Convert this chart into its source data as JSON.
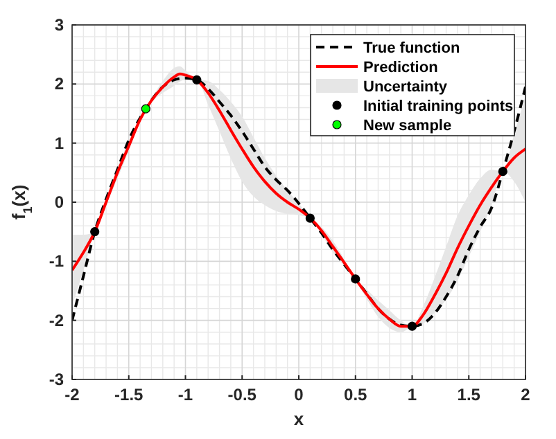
{
  "chart_data": {
    "type": "line",
    "xlabel": "x",
    "ylabel": "f$_{1}$(x)",
    "xlim": [
      -2,
      2
    ],
    "ylim": [
      -3,
      3
    ],
    "xticks": [
      -2,
      -1.5,
      -1,
      -0.5,
      0,
      0.5,
      1,
      1.5,
      2
    ],
    "yticks": [
      -3,
      -2,
      -1,
      0,
      1,
      2,
      3
    ],
    "grid": true,
    "legend": "top right",
    "series": [
      {
        "name": "True function",
        "line_style": "dashed",
        "color": "#000000",
        "x": [
          -2,
          -1.9,
          -1.8,
          -1.7,
          -1.6,
          -1.5,
          -1.35,
          -1.2,
          -1.1,
          -1,
          -0.9,
          -0.8,
          -0.7,
          -0.6,
          -0.5,
          -0.4,
          -0.3,
          -0.2,
          -0.1,
          0,
          0.1,
          0.2,
          0.3,
          0.4,
          0.5,
          0.6,
          0.7,
          0.8,
          0.9,
          1,
          1.1,
          1.2,
          1.3,
          1.4,
          1.5,
          1.6,
          1.7,
          1.8,
          1.9,
          2
        ],
        "values": [
          -2,
          -1.25,
          -0.5,
          0.05,
          0.55,
          1.05,
          1.58,
          1.95,
          2.07,
          2.1,
          2.07,
          1.92,
          1.7,
          1.47,
          1.2,
          0.9,
          0.6,
          0.38,
          0.2,
          -0.02,
          -0.27,
          -0.52,
          -0.8,
          -1.05,
          -1.3,
          -1.55,
          -1.8,
          -1.98,
          -2.08,
          -2.1,
          -2.05,
          -1.88,
          -1.6,
          -1.25,
          -0.8,
          -0.42,
          -0.1,
          0.52,
          1.2,
          1.95
        ]
      },
      {
        "name": "Prediction",
        "type": "line",
        "line_style": "solid",
        "color": "#ff0000",
        "x": [
          -2,
          -1.9,
          -1.8,
          -1.7,
          -1.6,
          -1.5,
          -1.4,
          -1.3,
          -1.2,
          -1.1,
          -1.05,
          -1,
          -0.9,
          -0.8,
          -0.7,
          -0.6,
          -0.5,
          -0.4,
          -0.3,
          -0.2,
          -0.1,
          0,
          0.1,
          0.2,
          0.3,
          0.4,
          0.5,
          0.6,
          0.7,
          0.8,
          0.9,
          1,
          1.1,
          1.2,
          1.3,
          1.4,
          1.5,
          1.6,
          1.7,
          1.8,
          1.9,
          2
        ],
        "values": [
          -1.15,
          -0.85,
          -0.5,
          0.0,
          0.5,
          0.95,
          1.4,
          1.72,
          1.95,
          2.12,
          2.17,
          2.15,
          2.07,
          1.85,
          1.55,
          1.22,
          0.9,
          0.6,
          0.35,
          0.15,
          0.0,
          -0.12,
          -0.27,
          -0.48,
          -0.75,
          -1.02,
          -1.3,
          -1.56,
          -1.8,
          -1.98,
          -2.1,
          -2.1,
          -1.9,
          -1.57,
          -1.2,
          -0.78,
          -0.4,
          -0.05,
          0.25,
          0.52,
          0.75,
          0.9
        ],
        "lower": [
          -1.75,
          -1.15,
          -0.5,
          -0.05,
          0.4,
          0.87,
          1.38,
          1.69,
          1.85,
          1.97,
          2.04,
          2.07,
          2.07,
          1.65,
          1.2,
          0.74,
          0.35,
          0.1,
          -0.05,
          -0.15,
          -0.2,
          -0.22,
          -0.27,
          -0.54,
          -0.85,
          -1.08,
          -1.3,
          -1.64,
          -1.94,
          -2.13,
          -2.2,
          -2.1,
          -2.05,
          -1.87,
          -1.65,
          -1.33,
          -0.92,
          -0.5,
          -0.05,
          0.52,
          0.35,
          0
        ],
        "upper": [
          -0.55,
          -0.55,
          -0.5,
          0.05,
          0.6,
          1.03,
          1.42,
          1.75,
          2.05,
          2.27,
          2.3,
          2.23,
          2.07,
          2.05,
          1.9,
          1.7,
          1.45,
          1.1,
          0.75,
          0.45,
          0.2,
          -0.02,
          -0.27,
          -0.42,
          -0.65,
          -0.96,
          -1.3,
          -1.48,
          -1.66,
          -1.83,
          -2,
          -2.1,
          -1.75,
          -1.27,
          -0.75,
          -0.23,
          0.12,
          0.4,
          0.55,
          0.52,
          1.15,
          1.8
        ]
      },
      {
        "name": "Uncertainty",
        "type": "area",
        "color": "#e6e6e6"
      },
      {
        "name": "Initial training points",
        "type": "scatter",
        "marker": "circle",
        "color": "#000000",
        "x": [
          -1.8,
          -0.9,
          0.1,
          0.5,
          1,
          1.8
        ],
        "values": [
          -0.5,
          2.07,
          -0.27,
          -1.3,
          -2.1,
          0.52
        ]
      },
      {
        "name": "New sample",
        "type": "scatter",
        "marker": "circle",
        "color": "#00ff00",
        "x": [
          -1.35
        ],
        "values": [
          1.58
        ]
      }
    ]
  }
}
